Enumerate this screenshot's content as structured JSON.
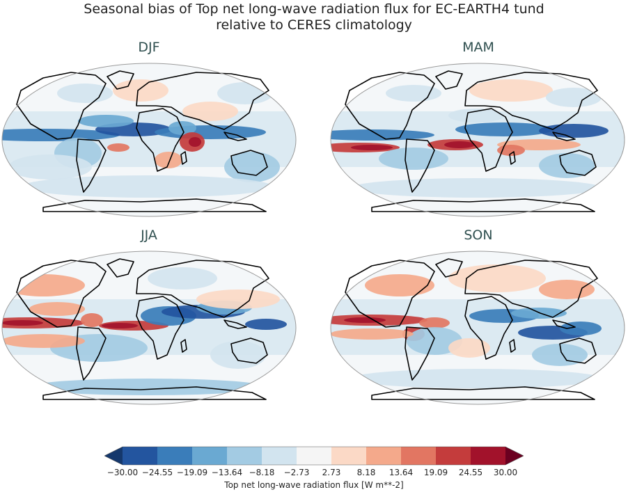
{
  "title_line1": "Seasonal bias of Top net long-wave radiation flux for EC-EARTH4 tund",
  "title_line2": "relative to CERES climatology",
  "panels": [
    "DJF",
    "MAM",
    "JJA",
    "SON"
  ],
  "colorbar": {
    "label": "Top net long-wave radiation flux [W m**-2]",
    "ticks": [
      "−30.00",
      "−24.55",
      "−19.09",
      "−13.64",
      "−8.18",
      "−2.73",
      "2.73",
      "8.18",
      "13.64",
      "19.09",
      "24.55",
      "30.00"
    ],
    "colors": [
      "#23559f",
      "#3a7dba",
      "#6aa9d2",
      "#a3cbe3",
      "#d2e4ef",
      "#f5f5f5",
      "#fbd9c6",
      "#f4a98b",
      "#e27662",
      "#c43c3c",
      "#a2122b"
    ],
    "under_color": "#15386c",
    "over_color": "#6b0020"
  },
  "colors": {
    "land_outline": "#000000",
    "map_border": "#9a9a9a",
    "neutral": "#f4f7f9"
  }
}
